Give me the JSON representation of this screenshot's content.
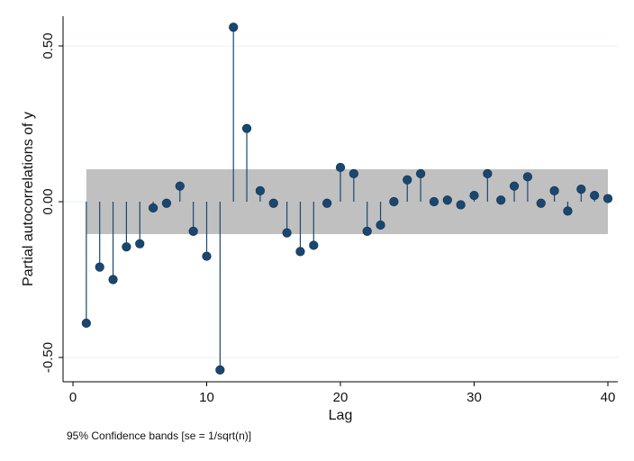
{
  "chart_data": {
    "type": "scatter",
    "subtype": "pacf-stem",
    "xlabel": "Lag",
    "ylabel": "Partial autocorrelations of y",
    "note": "95% Confidence bands [se = 1/sqrt(n)]",
    "xlim": [
      0,
      40
    ],
    "ylim": [
      -0.5,
      0.5
    ],
    "xticks": [
      0,
      10,
      20,
      30,
      40
    ],
    "yticks": [
      -0.5,
      0.0,
      0.5
    ],
    "ytick_labels": [
      "-0.50",
      "0.00",
      "0.50"
    ],
    "xtick_labels": [
      "0",
      "10",
      "20",
      "30",
      "40"
    ],
    "confidence_band": [
      -0.104,
      0.104
    ],
    "grid": "horizontal",
    "colors": {
      "marker": "#1a476f",
      "stem": "#1a476f",
      "band": "#c0c0c0",
      "grid": "#eaf2f3"
    },
    "series": [
      {
        "x": [
          1,
          2,
          3,
          4,
          5,
          6,
          7,
          8,
          9,
          10,
          11,
          12,
          13,
          14,
          15,
          16,
          17,
          18,
          19,
          20,
          21,
          22,
          23,
          24,
          25,
          26,
          27,
          28,
          29,
          30,
          31,
          32,
          33,
          34,
          35,
          36,
          37,
          38,
          39,
          40
        ],
        "y": [
          -0.39,
          -0.21,
          -0.25,
          -0.145,
          -0.135,
          -0.02,
          -0.005,
          0.05,
          -0.095,
          -0.175,
          -0.54,
          0.56,
          0.235,
          0.035,
          -0.005,
          -0.1,
          -0.16,
          -0.14,
          -0.005,
          0.11,
          0.09,
          -0.095,
          -0.075,
          0.0,
          0.07,
          0.09,
          0.0,
          0.005,
          -0.01,
          0.02,
          0.09,
          0.005,
          0.05,
          0.08,
          -0.005,
          0.035,
          -0.03,
          0.04,
          0.02,
          0.01
        ]
      }
    ]
  }
}
